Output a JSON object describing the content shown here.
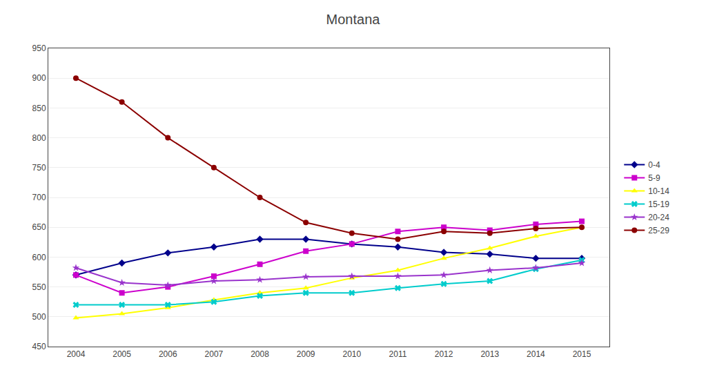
{
  "chart_data": {
    "type": "line",
    "title": "Montana",
    "x": [
      2004,
      2005,
      2006,
      2007,
      2008,
      2009,
      2010,
      2011,
      2012,
      2013,
      2014,
      2015
    ],
    "series": [
      {
        "name": "0-4",
        "color": "#00008B",
        "marker": "diamond",
        "values": [
          570,
          590,
          607,
          617,
          630,
          630,
          622,
          617,
          608,
          605,
          598,
          598
        ]
      },
      {
        "name": "5-9",
        "color": "#CC00CC",
        "marker": "square",
        "values": [
          570,
          540,
          550,
          568,
          588,
          610,
          622,
          643,
          650,
          645,
          655,
          660
        ]
      },
      {
        "name": "10-14",
        "color": "#FFFF00",
        "marker": "triangle-up",
        "values": [
          498,
          505,
          515,
          528,
          540,
          548,
          565,
          578,
          598,
          615,
          635,
          650
        ]
      },
      {
        "name": "15-19",
        "color": "#00CCCC",
        "marker": "x",
        "values": [
          520,
          520,
          520,
          525,
          535,
          540,
          540,
          548,
          555,
          560,
          580,
          595
        ]
      },
      {
        "name": "20-24",
        "color": "#9933CC",
        "marker": "star",
        "values": [
          582,
          557,
          553,
          560,
          562,
          567,
          568,
          568,
          570,
          578,
          582,
          590
        ]
      },
      {
        "name": "25-29",
        "color": "#8B0000",
        "marker": "circle",
        "values": [
          900,
          860,
          800,
          750,
          700,
          658,
          640,
          630,
          643,
          640,
          648,
          650
        ]
      }
    ],
    "xlim": [
      2003.4,
      2015.6
    ],
    "xticks": [
      2004,
      2005,
      2006,
      2007,
      2008,
      2009,
      2010,
      2011,
      2012,
      2013,
      2014,
      2015
    ],
    "ylim": [
      450,
      950
    ],
    "yticks": [
      450,
      500,
      550,
      600,
      650,
      700,
      750,
      800,
      850,
      900,
      950
    ],
    "grid": true,
    "legend": "right"
  }
}
